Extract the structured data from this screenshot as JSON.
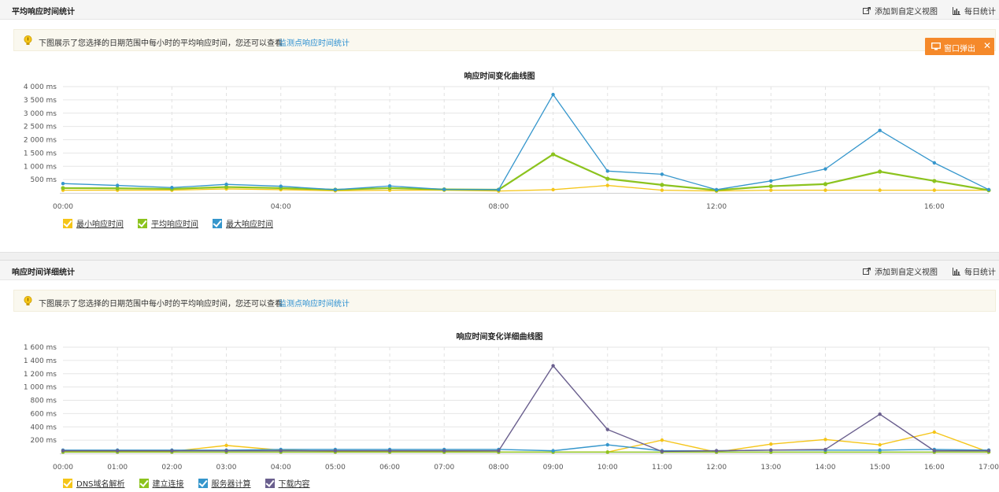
{
  "panel1": {
    "title": "平均响应时间统计",
    "actions": {
      "custom_view": "添加到自定义视图",
      "daily": "每日统计"
    },
    "tip": {
      "text": "下图展示了您选择的日期范围中每小时的平均响应时间，您还可以查看",
      "link": "监测点响应时间统计"
    },
    "popout_label": "窗口弹出"
  },
  "panel2": {
    "title": "响应时间详细统计",
    "actions": {
      "custom_view": "添加到自定义视图",
      "daily": "每日统计"
    },
    "tip": {
      "text": "下图展示了您选择的日期范围中每小时的平均响应时间，您还可以查看",
      "link": "监测点响应时间统计"
    }
  },
  "colors": {
    "min": "#f5c518",
    "avg": "#8cc31e",
    "max": "#3596cc",
    "dns": "#f5c518",
    "connect": "#8cc31e",
    "server": "#3596cc",
    "download": "#6a5f8e",
    "popout": "#f5892a",
    "link": "#2b8fd1"
  },
  "icons": [
    "bulb-icon",
    "export-icon",
    "bar-chart-icon",
    "monitor-icon",
    "close-icon",
    "checkbox-icon"
  ],
  "chart_data": [
    {
      "type": "line",
      "title": "响应时间变化曲线图",
      "x": [
        "00:00",
        "01:00",
        "02:00",
        "03:00",
        "04:00",
        "05:00",
        "06:00",
        "07:00",
        "08:00",
        "09:00",
        "10:00",
        "11:00",
        "12:00",
        "13:00",
        "14:00",
        "15:00",
        "16:00",
        "17:00"
      ],
      "x_tick_labels": [
        "00:00",
        "04:00",
        "08:00",
        "12:00",
        "16:00"
      ],
      "y_ticks": [
        "500 ms",
        "1 000 ms",
        "1 500 ms",
        "2 000 ms",
        "2 500 ms",
        "3 000 ms",
        "3 500 ms",
        "4 000 ms"
      ],
      "ylim": [
        0,
        4000
      ],
      "grid": true,
      "legend_position": "bottom-left",
      "series": [
        {
          "name": "最小响应时间",
          "color_key": "min",
          "values": [
            100,
            100,
            100,
            150,
            120,
            80,
            100,
            100,
            70,
            120,
            280,
            100,
            70,
            100,
            100,
            100,
            100,
            100
          ]
        },
        {
          "name": "平均响应时间",
          "color_key": "avg",
          "values": [
            180,
            170,
            150,
            220,
            180,
            120,
            180,
            130,
            120,
            1450,
            530,
            300,
            100,
            250,
            330,
            800,
            450,
            100
          ]
        },
        {
          "name": "最大响应时间",
          "color_key": "max",
          "values": [
            350,
            280,
            200,
            320,
            250,
            120,
            260,
            130,
            120,
            3700,
            820,
            700,
            120,
            450,
            900,
            2350,
            1130,
            120
          ]
        }
      ]
    },
    {
      "type": "line",
      "title": "响应时间变化详细曲线图",
      "x": [
        "00:00",
        "01:00",
        "02:00",
        "03:00",
        "04:00",
        "05:00",
        "06:00",
        "07:00",
        "08:00",
        "09:00",
        "10:00",
        "11:00",
        "12:00",
        "13:00",
        "14:00",
        "15:00",
        "16:00",
        "17:00"
      ],
      "x_tick_labels": [
        "00:00",
        "01:00",
        "02:00",
        "03:00",
        "04:00",
        "05:00",
        "06:00",
        "07:00",
        "08:00",
        "09:00",
        "10:00",
        "11:00",
        "12:00",
        "13:00",
        "14:00",
        "15:00",
        "16:00",
        "17:00"
      ],
      "y_ticks": [
        "200 ms",
        "400 ms",
        "600 ms",
        "800 ms",
        "1 000 ms",
        "1 200 ms",
        "1 400 ms",
        "1 600 ms"
      ],
      "ylim": [
        0,
        1600
      ],
      "grid": true,
      "legend_position": "bottom-left",
      "series": [
        {
          "name": "DNS域名解析",
          "color_key": "dns",
          "values": [
            30,
            30,
            30,
            120,
            50,
            30,
            30,
            30,
            20,
            20,
            20,
            200,
            20,
            140,
            210,
            130,
            320,
            20
          ]
        },
        {
          "name": "建立连接",
          "color_key": "connect",
          "values": [
            20,
            20,
            20,
            20,
            20,
            20,
            20,
            20,
            20,
            20,
            20,
            20,
            20,
            20,
            20,
            20,
            20,
            20
          ]
        },
        {
          "name": "服务器计算",
          "color_key": "server",
          "values": [
            50,
            50,
            50,
            50,
            60,
            60,
            60,
            60,
            60,
            40,
            130,
            40,
            40,
            50,
            50,
            50,
            60,
            50
          ]
        },
        {
          "name": "下载内容",
          "color_key": "download",
          "values": [
            40,
            40,
            40,
            40,
            40,
            40,
            40,
            40,
            40,
            1320,
            360,
            30,
            40,
            50,
            60,
            590,
            40,
            40
          ]
        }
      ]
    }
  ]
}
